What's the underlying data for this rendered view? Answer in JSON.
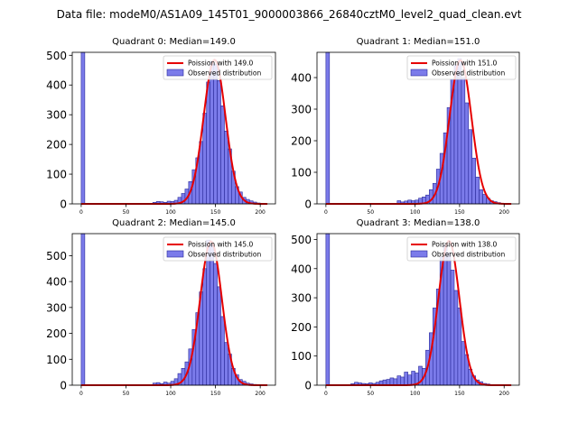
{
  "figure_title": "Data file: modeM0/AS1A09_145T01_9000003866_26840cztM0_level2_quad_clean.evt",
  "colors": {
    "bar_fill": "#7b7bea",
    "bar_edge": "#2a2a9a",
    "curve": "#e60000",
    "axis": "#000000"
  },
  "chart_data": [
    {
      "type": "bar",
      "title": "Quadrant 0: Median=149.0",
      "xlim": [
        -10,
        217
      ],
      "ylim": [
        0,
        510
      ],
      "xticks": [
        0,
        50,
        100,
        150,
        200
      ],
      "yticks": [
        0,
        100,
        200,
        300,
        400,
        500
      ],
      "bin_width": 4,
      "bins": [
        [
          0,
          510
        ],
        [
          80,
          5
        ],
        [
          84,
          8
        ],
        [
          88,
          7
        ],
        [
          92,
          5
        ],
        [
          96,
          9
        ],
        [
          100,
          8
        ],
        [
          104,
          12
        ],
        [
          108,
          22
        ],
        [
          112,
          35
        ],
        [
          116,
          50
        ],
        [
          120,
          75
        ],
        [
          124,
          115
        ],
        [
          128,
          155
        ],
        [
          132,
          210
        ],
        [
          136,
          305
        ],
        [
          140,
          410
        ],
        [
          144,
          480
        ],
        [
          148,
          470
        ],
        [
          152,
          415
        ],
        [
          156,
          330
        ],
        [
          160,
          245
        ],
        [
          164,
          185
        ],
        [
          168,
          110
        ],
        [
          172,
          58
        ],
        [
          176,
          40
        ],
        [
          180,
          22
        ],
        [
          184,
          15
        ],
        [
          188,
          10
        ],
        [
          192,
          6
        ],
        [
          196,
          3
        ],
        [
          200,
          2
        ]
      ],
      "poisson_mean": 149,
      "poisson_peak": 485,
      "legend": {
        "curve_label": "Poission with 149.0",
        "bar_label": "Observed distribution",
        "position": "upper right"
      }
    },
    {
      "type": "bar",
      "title": "Quadrant 1: Median=151.0",
      "xlim": [
        -10,
        217
      ],
      "ylim": [
        0,
        480
      ],
      "xticks": [
        0,
        50,
        100,
        150,
        200
      ],
      "yticks": [
        0,
        100,
        200,
        300,
        400
      ],
      "bin_width": 4,
      "bins": [
        [
          0,
          480
        ],
        [
          80,
          10
        ],
        [
          84,
          6
        ],
        [
          88,
          9
        ],
        [
          92,
          12
        ],
        [
          96,
          10
        ],
        [
          100,
          12
        ],
        [
          104,
          18
        ],
        [
          108,
          22
        ],
        [
          112,
          28
        ],
        [
          116,
          45
        ],
        [
          120,
          65
        ],
        [
          124,
          110
        ],
        [
          128,
          160
        ],
        [
          132,
          225
        ],
        [
          136,
          305
        ],
        [
          140,
          395
        ],
        [
          144,
          440
        ],
        [
          148,
          460
        ],
        [
          152,
          400
        ],
        [
          156,
          320
        ],
        [
          160,
          235
        ],
        [
          164,
          145
        ],
        [
          168,
          85
        ],
        [
          172,
          45
        ],
        [
          176,
          30
        ],
        [
          180,
          18
        ],
        [
          184,
          10
        ],
        [
          188,
          7
        ],
        [
          192,
          4
        ],
        [
          196,
          2
        ]
      ],
      "poisson_mean": 151,
      "poisson_peak": 455,
      "legend": {
        "curve_label": "Poission with 151.0",
        "bar_label": "Observed distribution",
        "position": "upper right"
      }
    },
    {
      "type": "bar",
      "title": "Quadrant 2: Median=145.0",
      "xlim": [
        -10,
        217
      ],
      "ylim": [
        0,
        585
      ],
      "xticks": [
        0,
        50,
        100,
        150,
        200
      ],
      "yticks": [
        0,
        100,
        200,
        300,
        400,
        500
      ],
      "bin_width": 4,
      "bins": [
        [
          0,
          585
        ],
        [
          80,
          8
        ],
        [
          84,
          10
        ],
        [
          88,
          6
        ],
        [
          92,
          12
        ],
        [
          96,
          8
        ],
        [
          100,
          15
        ],
        [
          104,
          25
        ],
        [
          108,
          45
        ],
        [
          112,
          65
        ],
        [
          116,
          90
        ],
        [
          120,
          140
        ],
        [
          124,
          215
        ],
        [
          128,
          280
        ],
        [
          132,
          360
        ],
        [
          136,
          450
        ],
        [
          140,
          560
        ],
        [
          144,
          545
        ],
        [
          148,
          470
        ],
        [
          152,
          380
        ],
        [
          156,
          265
        ],
        [
          160,
          165
        ],
        [
          164,
          120
        ],
        [
          168,
          65
        ],
        [
          172,
          40
        ],
        [
          176,
          22
        ],
        [
          180,
          15
        ],
        [
          184,
          8
        ],
        [
          188,
          5
        ],
        [
          192,
          3
        ]
      ],
      "poisson_mean": 145,
      "poisson_peak": 555,
      "legend": {
        "curve_label": "Poission with 145.0",
        "bar_label": "Observed distribution",
        "position": "upper right"
      }
    },
    {
      "type": "bar",
      "title": "Quadrant 3: Median=138.0",
      "xlim": [
        -10,
        217
      ],
      "ylim": [
        0,
        520
      ],
      "xticks": [
        0,
        50,
        100,
        150,
        200
      ],
      "yticks": [
        0,
        100,
        200,
        300,
        400,
        500
      ],
      "bin_width": 4,
      "bins": [
        [
          0,
          520
        ],
        [
          28,
          5
        ],
        [
          32,
          10
        ],
        [
          36,
          8
        ],
        [
          40,
          6
        ],
        [
          44,
          5
        ],
        [
          48,
          8
        ],
        [
          52,
          6
        ],
        [
          56,
          10
        ],
        [
          60,
          15
        ],
        [
          64,
          18
        ],
        [
          68,
          20
        ],
        [
          72,
          25
        ],
        [
          76,
          22
        ],
        [
          80,
          32
        ],
        [
          84,
          28
        ],
        [
          88,
          45
        ],
        [
          92,
          35
        ],
        [
          96,
          48
        ],
        [
          100,
          42
        ],
        [
          104,
          65
        ],
        [
          108,
          58
        ],
        [
          112,
          120
        ],
        [
          116,
          180
        ],
        [
          120,
          265
        ],
        [
          124,
          330
        ],
        [
          128,
          440
        ],
        [
          132,
          480
        ],
        [
          136,
          455
        ],
        [
          140,
          395
        ],
        [
          144,
          325
        ],
        [
          148,
          265
        ],
        [
          152,
          150
        ],
        [
          156,
          105
        ],
        [
          160,
          55
        ],
        [
          164,
          32
        ],
        [
          168,
          18
        ],
        [
          172,
          12
        ],
        [
          176,
          6
        ],
        [
          180,
          4
        ],
        [
          184,
          2
        ]
      ],
      "poisson_mean": 138,
      "poisson_peak": 495,
      "legend": {
        "curve_label": "Poission with 138.0",
        "bar_label": "Observed distribution",
        "position": "upper right"
      }
    }
  ]
}
